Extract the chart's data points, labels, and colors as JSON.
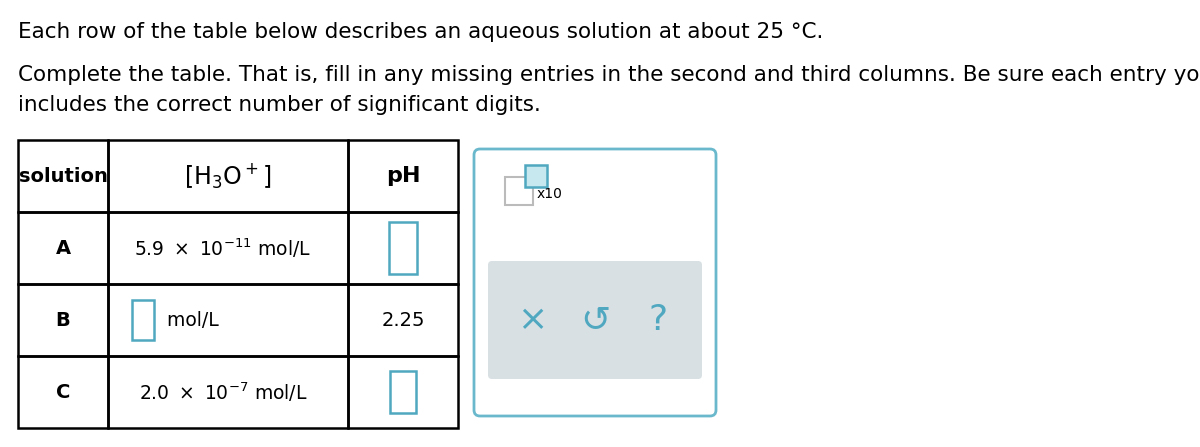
{
  "bg_color": "#ffffff",
  "title1": "Each row of the table below describes an aqueous solution at about 25 °C.",
  "title2": "Complete the table. That is, fill in any missing entries in the second and third columns. Be sure each entry you write",
  "title3": "includes the correct number of significant digits.",
  "input_box_color": "#4fa8c0",
  "panel_border_color": "#6ab8cc",
  "gray_color": "#d8e0e4",
  "icon_color": "#4fa8c0"
}
